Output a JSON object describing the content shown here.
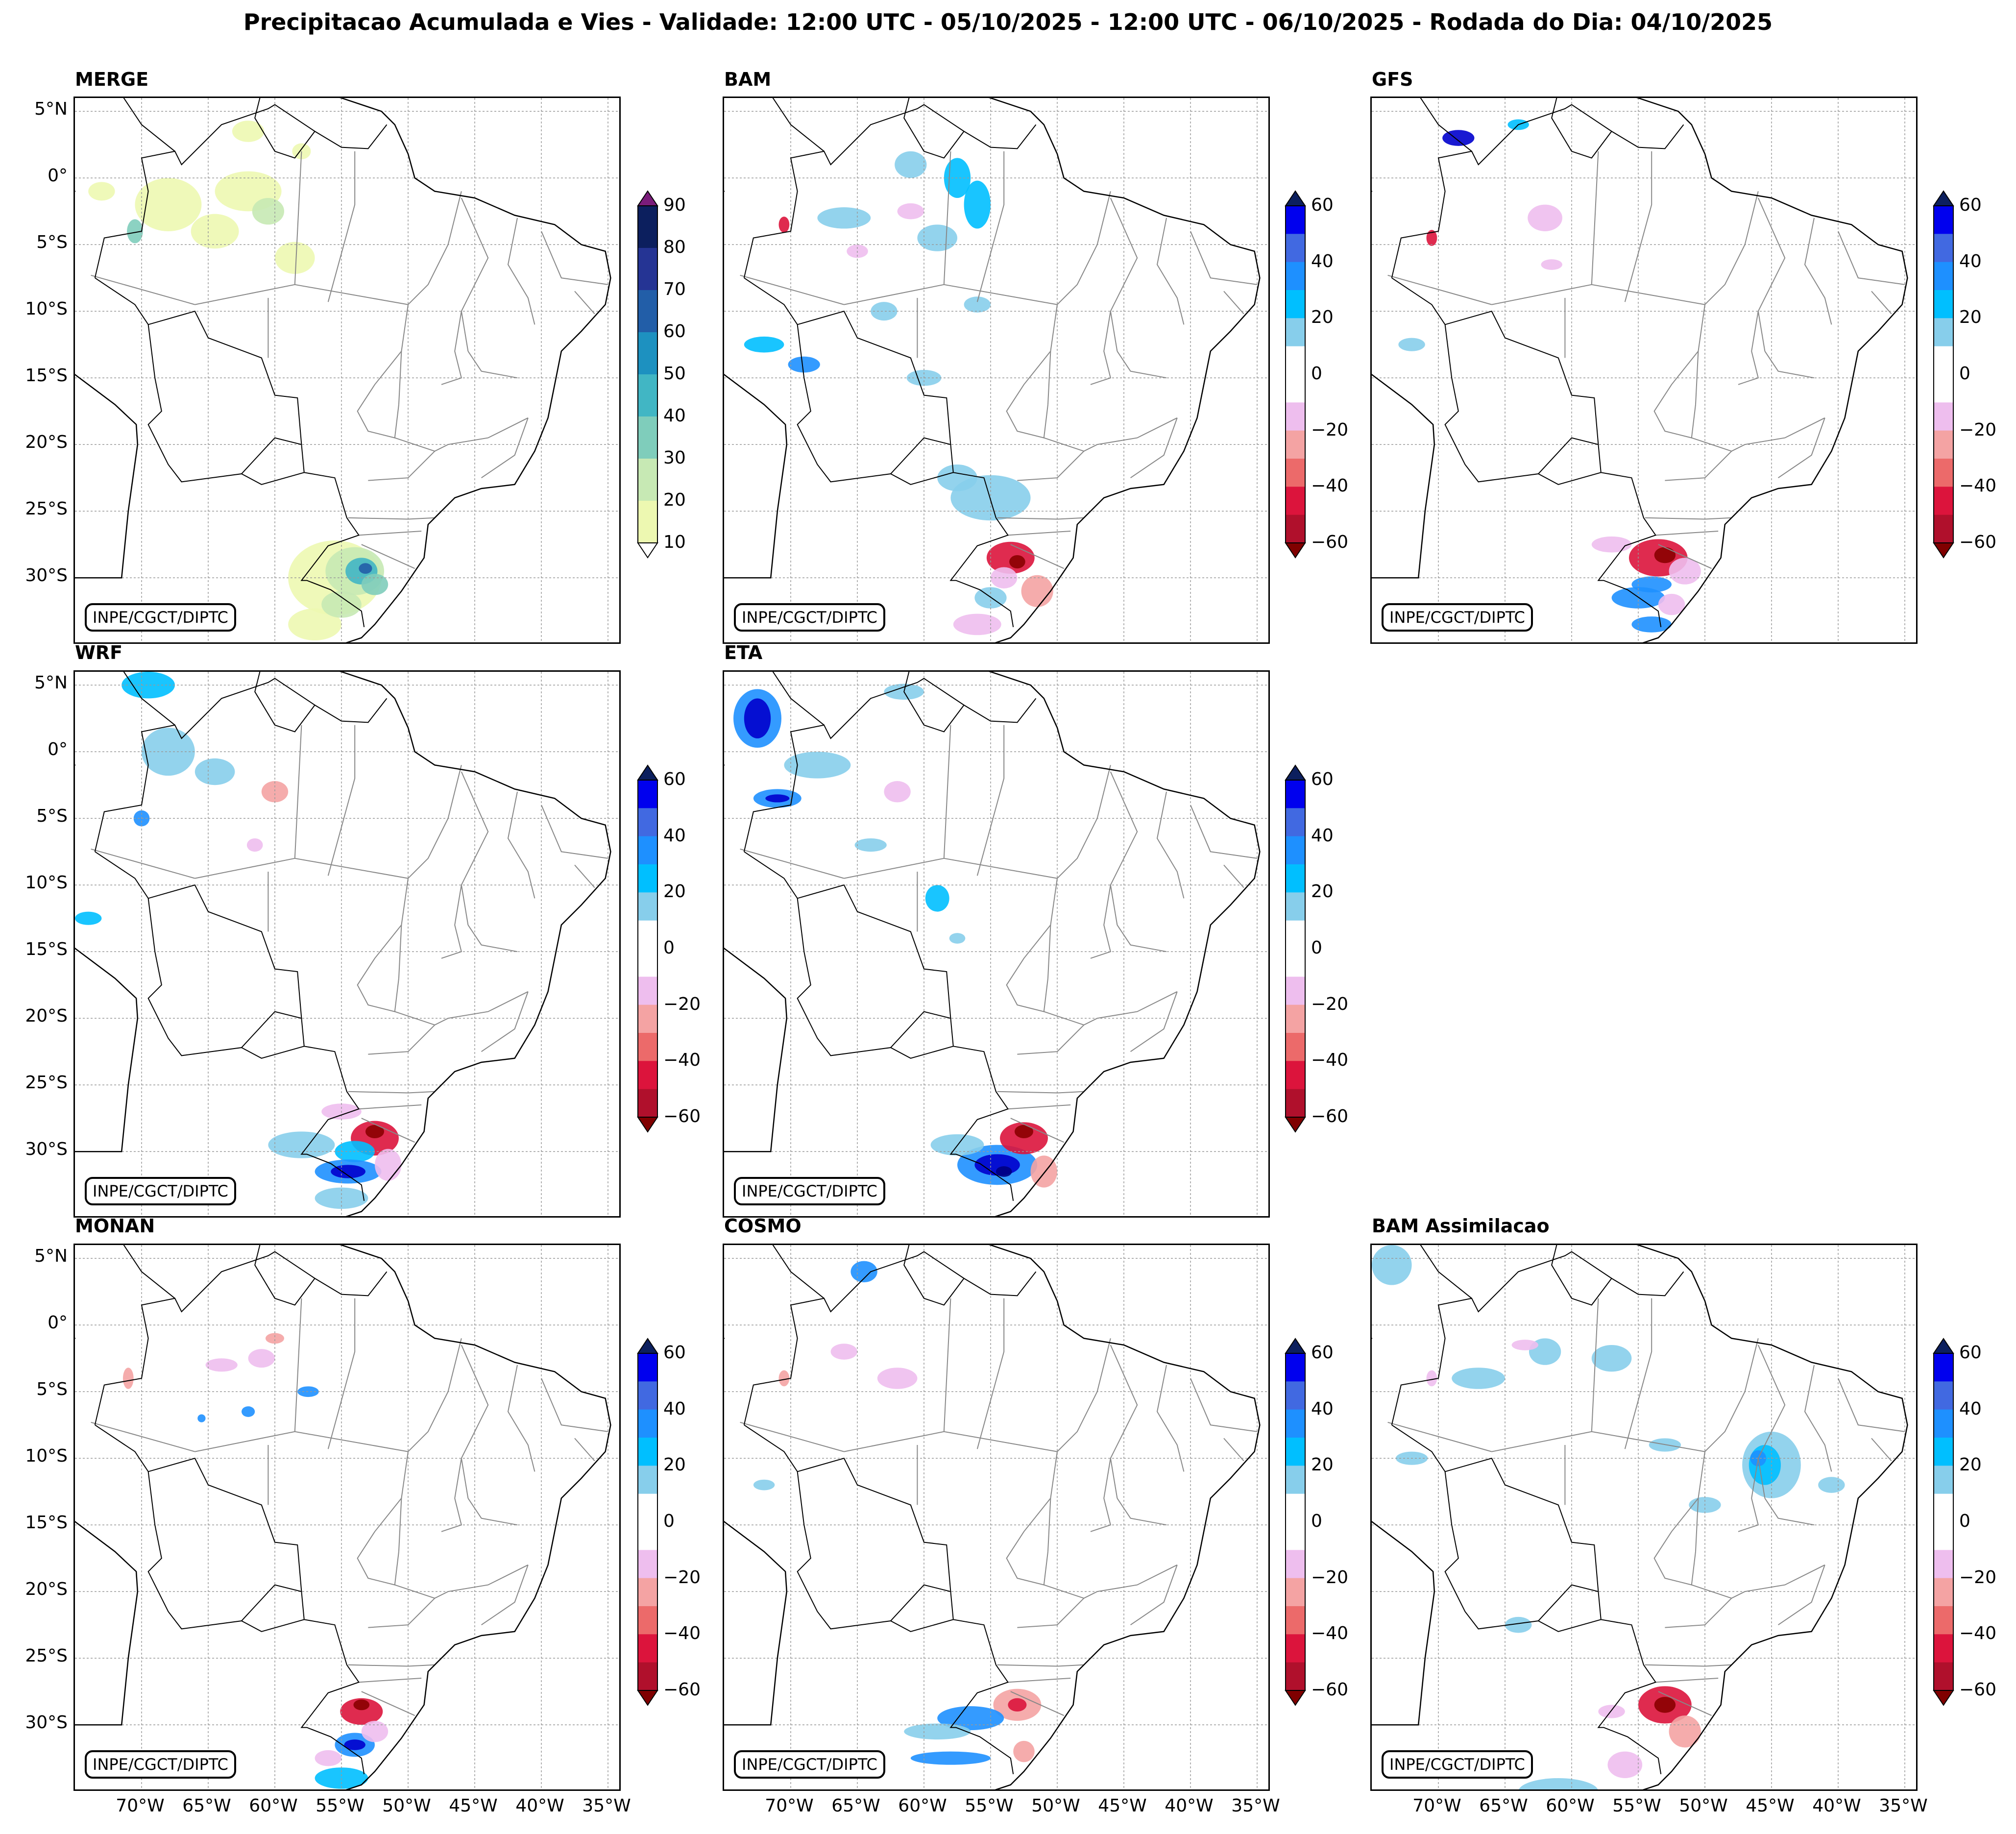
{
  "title": "Precipitacao Acumulada e Vies - Validade: 12:00 UTC - 05/10/2025 - 12:00 UTC - 06/10/2025 - Rodada do Dia: 04/10/2025",
  "credit": "INPE/CGCT/DIPTC",
  "lat_labels": [
    "5°N",
    "0°",
    "5°S",
    "10°S",
    "15°S",
    "20°S",
    "25°S",
    "30°S"
  ],
  "lon_labels": [
    "70°W",
    "65°W",
    "60°W",
    "55°W",
    "50°W",
    "45°W",
    "40°W",
    "35°W"
  ],
  "colorbars": {
    "merge": {
      "ticks": [
        "90",
        "80",
        "70",
        "60",
        "50",
        "40",
        "30",
        "20",
        "10"
      ],
      "colors": [
        "#0c1f5e",
        "#253494",
        "#225ea8",
        "#1d91c0",
        "#41b6c4",
        "#7fcdbb",
        "#c7e9b4",
        "#edf8b1"
      ],
      "ext_top": "#7a1c7a",
      "ext_bottom": "#ffffff"
    },
    "bias": {
      "ticks": [
        "60",
        "40",
        "20",
        "0",
        "−20",
        "−40",
        "−60"
      ],
      "colors": [
        "#0000ee",
        "#4169e1",
        "#1e90ff",
        "#00bfff",
        "#87ceeb",
        "#ffffff",
        "#ffffff",
        "#eebeee",
        "#f4a3a3",
        "#ec6a6a",
        "#dc143c",
        "#b0102c"
      ],
      "ext_top": "#0c1f5e",
      "ext_bottom": "#800000"
    }
  },
  "panels": [
    {
      "id": "merge",
      "title": "MERGE",
      "cbar": "merge"
    },
    {
      "id": "bam",
      "title": "BAM",
      "cbar": "bias"
    },
    {
      "id": "gfs",
      "title": "GFS",
      "cbar": "bias"
    },
    {
      "id": "wrf",
      "title": "WRF",
      "cbar": "bias"
    },
    {
      "id": "eta",
      "title": "ETA",
      "cbar": "bias"
    },
    {
      "id": "monan",
      "title": "MONAN",
      "cbar": "bias"
    },
    {
      "id": "cosmo",
      "title": "COSMO",
      "cbar": "bias"
    },
    {
      "id": "bamas",
      "title": "BAM Assimilacao",
      "cbar": "bias"
    }
  ]
}
